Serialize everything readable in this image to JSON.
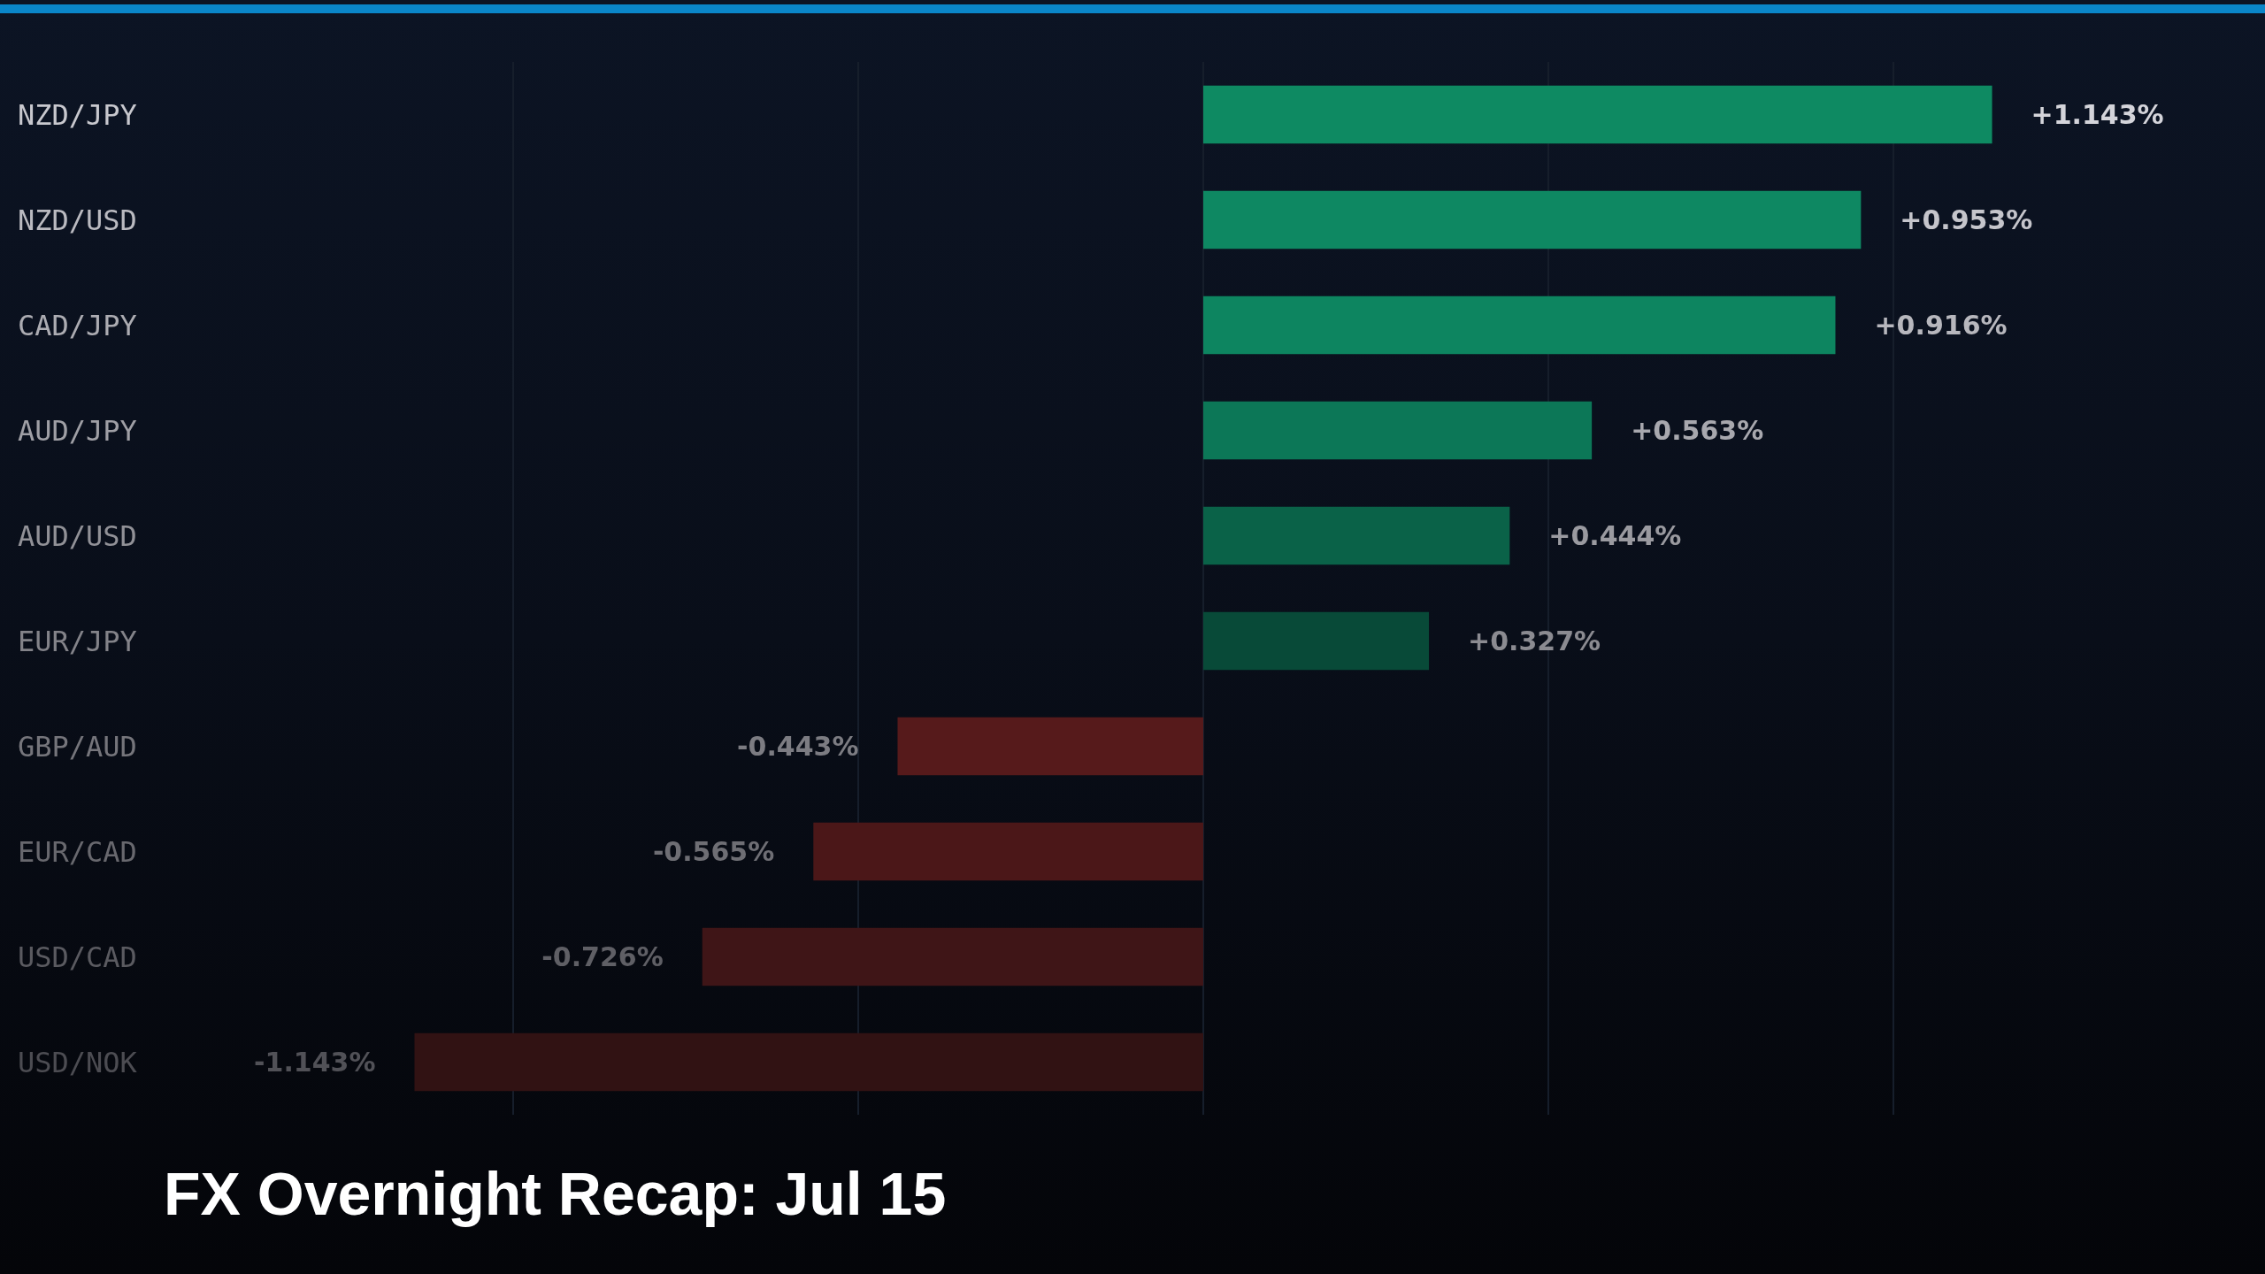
{
  "chart_data": {
    "type": "bar",
    "orientation": "horizontal",
    "title": "FX Overnight Recap: Jul 15",
    "categories": [
      "NZD/JPY",
      "NZD/USD",
      "CAD/JPY",
      "AUD/JPY",
      "AUD/USD",
      "EUR/JPY",
      "GBP/AUD",
      "EUR/CAD",
      "USD/CAD",
      "USD/NOK"
    ],
    "values": [
      1.143,
      0.953,
      0.916,
      0.563,
      0.444,
      0.327,
      -0.443,
      -0.565,
      -0.726,
      -1.143
    ],
    "value_labels": [
      "+1.143%",
      "+0.953%",
      "+0.916%",
      "+0.563%",
      "+0.444%",
      "+0.327%",
      "-0.443%",
      "-0.565%",
      "-0.726%",
      "-1.143%"
    ],
    "colors": [
      "#0e8a62",
      "#0e8862",
      "#0d8560",
      "#0c7757",
      "#0a6248",
      "#084a38",
      "#561a1b",
      "#4b1718",
      "#3f1517",
      "#311213"
    ],
    "xticks": [
      {
        "value": -1,
        "label": null
      },
      {
        "value": -0.5,
        "label": null
      },
      {
        "value": 0,
        "label": null
      },
      {
        "value": 0.5,
        "label": null
      },
      {
        "value": 1,
        "label": null
      }
    ],
    "tick_labels": "y",
    "grid": "x"
  }
}
